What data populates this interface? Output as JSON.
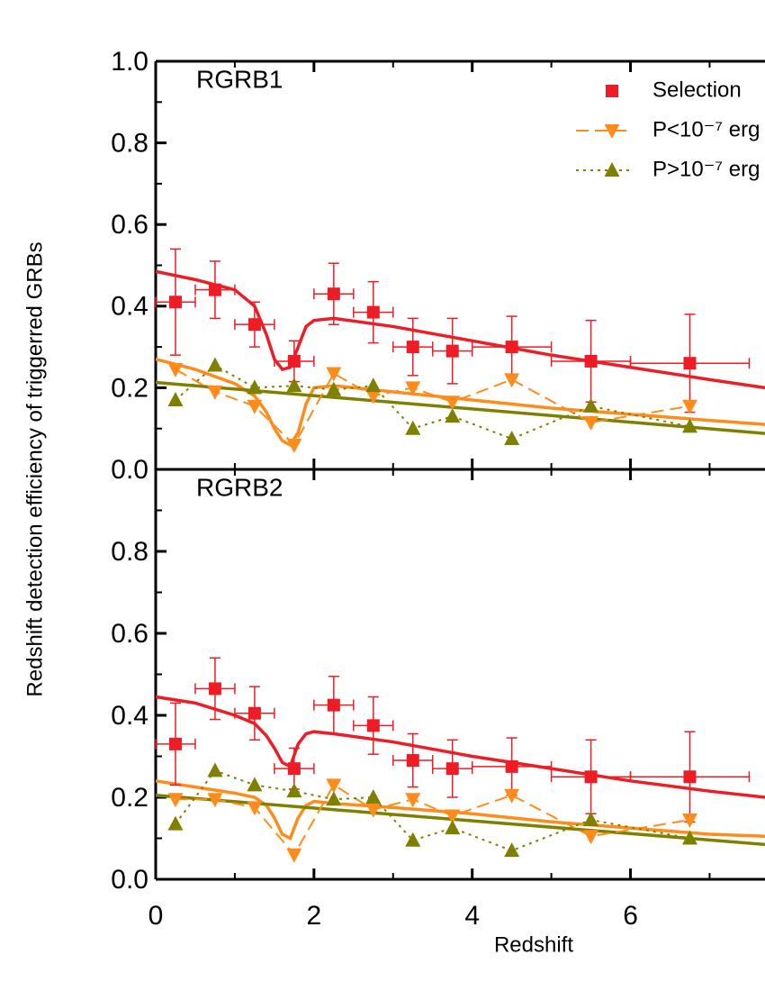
{
  "chart_data": [
    {
      "type": "scatter",
      "panel_label": "RGRB1",
      "ylabel": "Redshift detection efficiency of triggerred GRBs",
      "xlim": [
        0,
        7.7
      ],
      "xticks": [
        0,
        2,
        4,
        6
      ],
      "ylim": [
        0,
        1
      ],
      "yticks": [
        {
          "value": 0,
          "label": "0.0"
        },
        0.2,
        0.4,
        0.6,
        0.8,
        {
          "value": 1,
          "label": "1.0"
        }
      ],
      "legend": "upper right",
      "x": [
        0.25,
        0.75,
        1.25,
        1.75,
        2.25,
        2.75,
        3.25,
        3.75,
        4.5,
        5.5,
        6.75
      ],
      "series": [
        {
          "name": "Selection",
          "color": "#ee1c25",
          "marker": "square",
          "line_style": "none",
          "values": [
            0.41,
            0.44,
            0.355,
            0.265,
            0.43,
            0.385,
            0.3,
            0.29,
            0.3,
            0.265,
            0.26
          ],
          "yerr": [
            0.13,
            0.07,
            0.055,
            0.05,
            0.075,
            0.075,
            0.07,
            0.08,
            0.075,
            0.1,
            0.12
          ],
          "xerr": [
            0.25,
            0.25,
            0.25,
            0.25,
            0.25,
            0.25,
            0.25,
            0.25,
            0.5,
            0.5,
            0.75
          ]
        },
        {
          "name": "P<10⁻⁷ erg",
          "color": "#ff8c1a",
          "marker": "triangle-down",
          "line_style": "dashed",
          "values": [
            0.245,
            0.19,
            0.155,
            0.06,
            0.235,
            0.18,
            0.2,
            0.165,
            0.22,
            0.115,
            0.155
          ]
        },
        {
          "name": "P>10⁻⁷ erg",
          "color": "#808000",
          "marker": "triangle-up",
          "line_style": "dotted",
          "values": [
            0.17,
            0.255,
            0.2,
            0.205,
            0.195,
            0.205,
            0.1,
            0.13,
            0.075,
            0.155,
            0.105
          ]
        }
      ],
      "fits": [
        {
          "color": "#ee1c25",
          "x": [
            0,
            0.5,
            1,
            1.25,
            1.4,
            1.5,
            1.6,
            1.7,
            1.8,
            1.9,
            2,
            2.25,
            3,
            4,
            5,
            6,
            7,
            7.7
          ],
          "values": [
            0.485,
            0.465,
            0.44,
            0.4,
            0.33,
            0.27,
            0.245,
            0.25,
            0.3,
            0.35,
            0.365,
            0.37,
            0.35,
            0.315,
            0.28,
            0.25,
            0.22,
            0.2
          ]
        },
        {
          "color": "#ff8c1a",
          "x": [
            0,
            0.5,
            1,
            1.25,
            1.4,
            1.5,
            1.6,
            1.7,
            1.8,
            1.9,
            2,
            2.25,
            3,
            4,
            5,
            6,
            7,
            7.7
          ],
          "values": [
            0.27,
            0.245,
            0.21,
            0.18,
            0.14,
            0.1,
            0.07,
            0.06,
            0.09,
            0.16,
            0.2,
            0.205,
            0.19,
            0.17,
            0.15,
            0.135,
            0.12,
            0.11
          ]
        },
        {
          "color": "#808000",
          "x": [
            0,
            7.7
          ],
          "values": [
            0.213,
            0.088
          ]
        }
      ]
    },
    {
      "type": "scatter",
      "panel_label": "RGRB2",
      "xlabel": "Redshift",
      "xlim": [
        0,
        7.7
      ],
      "xticks": [
        0,
        2,
        4,
        6
      ],
      "ylim": [
        0,
        1
      ],
      "yticks": [
        {
          "value": 0,
          "label": "0.0"
        },
        0.2,
        0.4,
        0.6,
        0.8
      ],
      "x": [
        0.25,
        0.75,
        1.25,
        1.75,
        2.25,
        2.75,
        3.25,
        3.75,
        4.5,
        5.5,
        6.75
      ],
      "series": [
        {
          "color": "#ee1c25",
          "marker": "square",
          "line_style": "none",
          "values": [
            0.33,
            0.465,
            0.405,
            0.27,
            0.425,
            0.375,
            0.29,
            0.27,
            0.275,
            0.25,
            0.25
          ],
          "yerr": [
            0.1,
            0.075,
            0.065,
            0.05,
            0.07,
            0.07,
            0.065,
            0.07,
            0.07,
            0.09,
            0.11
          ],
          "xerr": [
            0.25,
            0.25,
            0.25,
            0.25,
            0.25,
            0.25,
            0.25,
            0.25,
            0.5,
            0.5,
            0.75
          ]
        },
        {
          "color": "#ff8c1a",
          "marker": "triangle-down",
          "line_style": "dashed",
          "values": [
            0.195,
            0.195,
            0.175,
            0.06,
            0.23,
            0.17,
            0.195,
            0.155,
            0.205,
            0.105,
            0.145
          ]
        },
        {
          "color": "#808000",
          "marker": "triangle-up",
          "line_style": "dotted",
          "values": [
            0.135,
            0.265,
            0.23,
            0.215,
            0.195,
            0.2,
            0.095,
            0.125,
            0.07,
            0.145,
            0.1
          ]
        }
      ],
      "fits": [
        {
          "color": "#ee1c25",
          "x": [
            0,
            0.5,
            1,
            1.25,
            1.4,
            1.5,
            1.6,
            1.7,
            1.8,
            1.9,
            2,
            2.25,
            3,
            4,
            5,
            6,
            7,
            7.7
          ],
          "values": [
            0.445,
            0.43,
            0.4,
            0.38,
            0.35,
            0.32,
            0.285,
            0.275,
            0.33,
            0.355,
            0.36,
            0.355,
            0.335,
            0.3,
            0.27,
            0.24,
            0.215,
            0.2
          ]
        },
        {
          "color": "#ff8c1a",
          "x": [
            0,
            0.5,
            1,
            1.25,
            1.4,
            1.5,
            1.6,
            1.7,
            1.8,
            1.9,
            2,
            2.25,
            3,
            4,
            5,
            6,
            7,
            7.7
          ],
          "values": [
            0.24,
            0.225,
            0.21,
            0.2,
            0.18,
            0.15,
            0.11,
            0.1,
            0.15,
            0.18,
            0.19,
            0.185,
            0.175,
            0.16,
            0.14,
            0.125,
            0.11,
            0.105
          ]
        },
        {
          "color": "#808000",
          "x": [
            0,
            7.7
          ],
          "values": [
            0.205,
            0.085
          ]
        }
      ]
    }
  ]
}
